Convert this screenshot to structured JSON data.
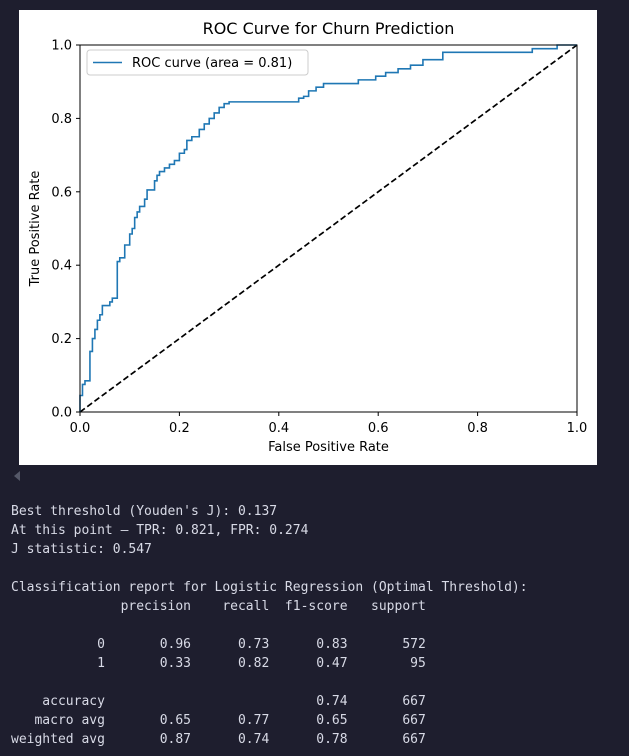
{
  "chart_data": {
    "type": "line",
    "title": "ROC Curve for Churn Prediction",
    "xlabel": "False Positive Rate",
    "ylabel": "True Positive Rate",
    "xlim": [
      0.0,
      1.0
    ],
    "ylim": [
      0.0,
      1.0
    ],
    "xticks": [
      "0.0",
      "0.2",
      "0.4",
      "0.6",
      "0.8",
      "1.0"
    ],
    "yticks": [
      "0.0",
      "0.2",
      "0.4",
      "0.6",
      "0.8",
      "1.0"
    ],
    "grid": false,
    "legend": "upper-left",
    "series": [
      {
        "name": "ROC curve (area = 0.81)",
        "color": "#1f77b4",
        "style": "solid",
        "x": [
          0.0,
          0.0,
          0.005,
          0.005,
          0.01,
          0.01,
          0.02,
          0.02,
          0.025,
          0.025,
          0.03,
          0.03,
          0.035,
          0.035,
          0.04,
          0.04,
          0.045,
          0.045,
          0.06,
          0.06,
          0.065,
          0.065,
          0.075,
          0.075,
          0.08,
          0.08,
          0.09,
          0.09,
          0.1,
          0.1,
          0.105,
          0.105,
          0.11,
          0.11,
          0.115,
          0.115,
          0.12,
          0.12,
          0.13,
          0.13,
          0.135,
          0.135,
          0.15,
          0.15,
          0.155,
          0.155,
          0.16,
          0.16,
          0.17,
          0.17,
          0.18,
          0.18,
          0.19,
          0.19,
          0.2,
          0.2,
          0.21,
          0.21,
          0.215,
          0.215,
          0.225,
          0.225,
          0.24,
          0.24,
          0.25,
          0.25,
          0.26,
          0.26,
          0.27,
          0.27,
          0.28,
          0.28,
          0.29,
          0.29,
          0.3,
          0.3,
          0.44,
          0.44,
          0.45,
          0.45,
          0.46,
          0.46,
          0.475,
          0.475,
          0.49,
          0.49,
          0.5,
          0.5,
          0.56,
          0.56,
          0.595,
          0.595,
          0.615,
          0.615,
          0.64,
          0.64,
          0.665,
          0.665,
          0.69,
          0.69,
          0.73,
          0.73,
          0.785,
          0.785,
          0.91,
          0.91,
          0.96,
          0.96,
          0.98,
          0.98,
          1.0
        ],
        "y": [
          0.0,
          0.045,
          0.045,
          0.075,
          0.075,
          0.085,
          0.085,
          0.165,
          0.165,
          0.2,
          0.2,
          0.225,
          0.225,
          0.25,
          0.25,
          0.265,
          0.265,
          0.29,
          0.29,
          0.3,
          0.3,
          0.31,
          0.31,
          0.41,
          0.41,
          0.42,
          0.42,
          0.455,
          0.455,
          0.485,
          0.485,
          0.5,
          0.5,
          0.53,
          0.53,
          0.545,
          0.545,
          0.56,
          0.56,
          0.58,
          0.58,
          0.605,
          0.605,
          0.63,
          0.63,
          0.645,
          0.645,
          0.655,
          0.655,
          0.665,
          0.665,
          0.675,
          0.675,
          0.685,
          0.685,
          0.705,
          0.705,
          0.715,
          0.715,
          0.74,
          0.74,
          0.75,
          0.75,
          0.77,
          0.77,
          0.785,
          0.785,
          0.8,
          0.8,
          0.815,
          0.815,
          0.83,
          0.83,
          0.84,
          0.84,
          0.845,
          0.845,
          0.855,
          0.855,
          0.86,
          0.86,
          0.875,
          0.875,
          0.885,
          0.885,
          0.895,
          0.895,
          0.895,
          0.895,
          0.905,
          0.905,
          0.915,
          0.915,
          0.925,
          0.925,
          0.935,
          0.935,
          0.945,
          0.945,
          0.96,
          0.96,
          0.98,
          0.98,
          0.98,
          0.98,
          0.99,
          0.99,
          1.0,
          1.0,
          1.0,
          1.0
        ]
      },
      {
        "name": "",
        "color": "#000000",
        "style": "dashed",
        "x": [
          0.0,
          1.0
        ],
        "y": [
          0.0,
          1.0
        ]
      }
    ]
  },
  "output": {
    "lines": [
      "Best threshold (Youden's J): 0.137",
      "At this point — TPR: 0.821, FPR: 0.274",
      "J statistic: 0.547",
      "",
      "Classification report for Logistic Regression (Optimal Threshold):",
      "              precision    recall  f1-score   support",
      "",
      "           0       0.96      0.73      0.83       572",
      "           1       0.33      0.82      0.47        95",
      "",
      "    accuracy                           0.74       667",
      "   macro avg       0.65      0.77      0.65       667",
      "weighted avg       0.87      0.74      0.78       667"
    ]
  }
}
